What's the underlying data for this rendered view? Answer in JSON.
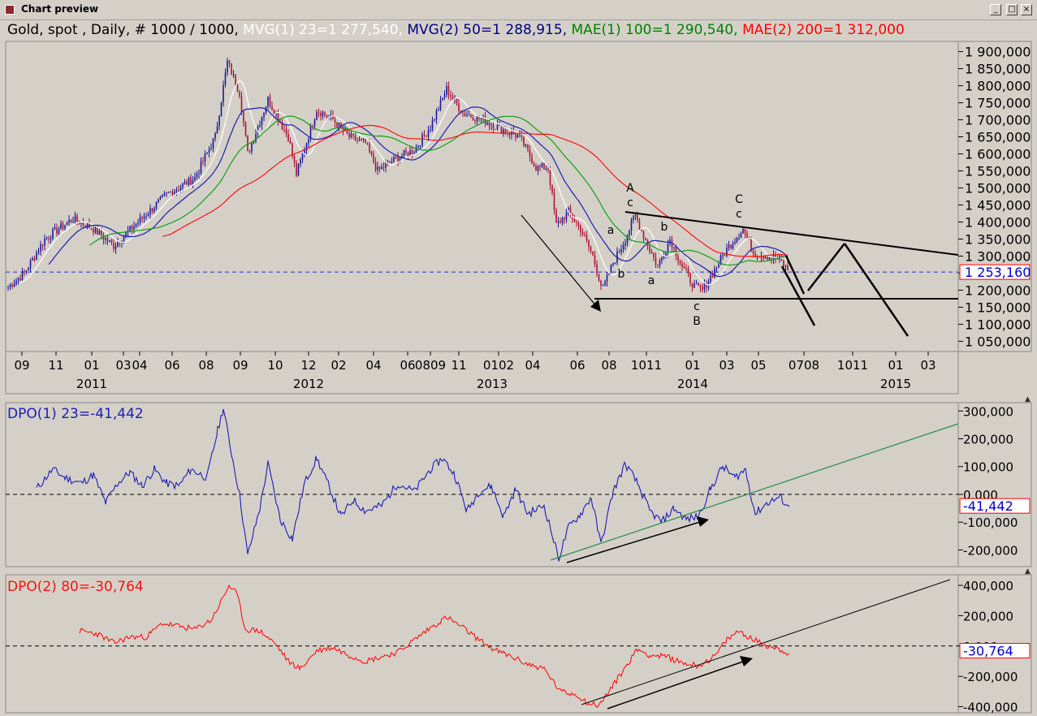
{
  "window": {
    "title": "Chart preview"
  },
  "legend": [
    {
      "text": "Gold, spot , Daily, # 1000 / 1000, ",
      "color": "#000000"
    },
    {
      "text": "MVG(1) 23=1 277,540, ",
      "color": "#ffffff"
    },
    {
      "text": "MVG(2) 50=1 288,915, ",
      "color": "#000080"
    },
    {
      "text": "MAE(1) 100=1 290,540, ",
      "color": "#008000"
    },
    {
      "text": "MAE(2) 200=1 312,000",
      "color": "#ff0000"
    }
  ],
  "colors": {
    "plot_bg": "#d4d0c8",
    "mvg1": "#ffffff",
    "mvg2": "#1c1cb4",
    "mae1": "#12a012",
    "mae2": "#ff1010",
    "dpo1": "#1c1cb4",
    "dpo2": "#ff1010"
  },
  "chart_data": [
    {
      "type": "candlestick",
      "x_month_labels": [
        "09",
        "11",
        "01",
        "03",
        "04",
        "06",
        "08",
        "09",
        "10",
        "12",
        "02",
        "04",
        "06",
        "0809",
        "11",
        "0102",
        "04",
        "06",
        "08",
        "1011",
        "01",
        "03",
        "05",
        "0708",
        "1011",
        "01",
        "03"
      ],
      "x_year_labels": [
        "2011",
        "2012",
        "2013",
        "2014",
        "2015"
      ],
      "y_ticks": [
        "1 900,000",
        "1 850,000",
        "1 800,000",
        "1 750,000",
        "1 700,000",
        "1 650,000",
        "1 600,000",
        "1 550,000",
        "1 500,000",
        "1 450,000",
        "1 400,000",
        "1 350,000",
        "1 300,000",
        "1 250,000",
        "1 200,000",
        "1 150,000",
        "1 100,000",
        "1 050,000"
      ],
      "ylim": [
        1020000,
        1930000
      ],
      "current_value": "1 253,160",
      "current_value_num": 1253160,
      "series": [
        {
          "name": "MVG(1) 23",
          "last": 1277540
        },
        {
          "name": "MVG(2) 50",
          "last": 1288915
        },
        {
          "name": "MAE(1) 100",
          "last": 1290540
        },
        {
          "name": "MAE(2) 200",
          "last": 1312000
        }
      ],
      "wave_labels": [
        "A",
        "c",
        "a",
        "b",
        "b",
        "a",
        "c",
        "B",
        "C",
        "c"
      ],
      "price_path": [
        [
          0,
          1210
        ],
        [
          20,
          1250
        ],
        [
          45,
          1350
        ],
        [
          80,
          1410
        ],
        [
          105,
          1380
        ],
        [
          130,
          1330
        ],
        [
          160,
          1400
        ],
        [
          195,
          1480
        ],
        [
          230,
          1530
        ],
        [
          255,
          1650
        ],
        [
          270,
          1870
        ],
        [
          285,
          1780
        ],
        [
          295,
          1600
        ],
        [
          320,
          1760
        ],
        [
          345,
          1650
        ],
        [
          355,
          1540
        ],
        [
          380,
          1730
        ],
        [
          400,
          1700
        ],
        [
          420,
          1650
        ],
        [
          440,
          1630
        ],
        [
          455,
          1550
        ],
        [
          480,
          1590
        ],
        [
          500,
          1610
        ],
        [
          520,
          1680
        ],
        [
          540,
          1790
        ],
        [
          560,
          1720
        ],
        [
          585,
          1700
        ],
        [
          610,
          1670
        ],
        [
          630,
          1650
        ],
        [
          650,
          1560
        ],
        [
          665,
          1560
        ],
        [
          675,
          1390
        ],
        [
          690,
          1430
        ],
        [
          705,
          1380
        ],
        [
          720,
          1300
        ],
        [
          732,
          1200
        ],
        [
          745,
          1280
        ],
        [
          760,
          1350
        ],
        [
          772,
          1420
        ],
        [
          790,
          1320
        ],
        [
          800,
          1270
        ],
        [
          815,
          1350
        ],
        [
          830,
          1270
        ],
        [
          845,
          1210
        ],
        [
          855,
          1200
        ],
        [
          870,
          1260
        ],
        [
          885,
          1320
        ],
        [
          905,
          1380
        ],
        [
          918,
          1310
        ],
        [
          935,
          1300
        ],
        [
          950,
          1290
        ],
        [
          962,
          1253
        ]
      ]
    },
    {
      "type": "line",
      "series": [
        {
          "name": "DPO(1) 23",
          "last": -41442
        }
      ],
      "legend_text": "DPO(1) 23=-41,442",
      "y_ticks": [
        "300,000",
        "200,000",
        "100,000",
        "0,000",
        "-100,000",
        "-200,000"
      ],
      "ylim": [
        -260000,
        330000
      ],
      "current_value": "-41,442",
      "current_value_num": -41442,
      "path": [
        [
          35,
          20
        ],
        [
          55,
          90
        ],
        [
          70,
          60
        ],
        [
          90,
          40
        ],
        [
          105,
          70
        ],
        [
          120,
          -30
        ],
        [
          135,
          40
        ],
        [
          150,
          80
        ],
        [
          165,
          30
        ],
        [
          180,
          90
        ],
        [
          195,
          40
        ],
        [
          210,
          30
        ],
        [
          225,
          90
        ],
        [
          245,
          60
        ],
        [
          258,
          230
        ],
        [
          265,
          310
        ],
        [
          275,
          150
        ],
        [
          285,
          0
        ],
        [
          295,
          -220
        ],
        [
          310,
          -50
        ],
        [
          320,
          110
        ],
        [
          335,
          -90
        ],
        [
          350,
          -160
        ],
        [
          365,
          40
        ],
        [
          380,
          130
        ],
        [
          395,
          30
        ],
        [
          410,
          -80
        ],
        [
          425,
          -20
        ],
        [
          440,
          -60
        ],
        [
          460,
          -40
        ],
        [
          480,
          40
        ],
        [
          500,
          10
        ],
        [
          520,
          90
        ],
        [
          535,
          130
        ],
        [
          550,
          70
        ],
        [
          565,
          -60
        ],
        [
          580,
          10
        ],
        [
          595,
          30
        ],
        [
          610,
          -80
        ],
        [
          625,
          20
        ],
        [
          640,
          -70
        ],
        [
          660,
          -40
        ],
        [
          678,
          -230
        ],
        [
          690,
          -120
        ],
        [
          705,
          -70
        ],
        [
          718,
          -10
        ],
        [
          730,
          -180
        ],
        [
          745,
          10
        ],
        [
          760,
          110
        ],
        [
          775,
          40
        ],
        [
          790,
          -60
        ],
        [
          805,
          -100
        ],
        [
          820,
          -50
        ],
        [
          835,
          -90
        ],
        [
          850,
          -80
        ],
        [
          865,
          20
        ],
        [
          880,
          100
        ],
        [
          895,
          60
        ],
        [
          908,
          90
        ],
        [
          920,
          -70
        ],
        [
          935,
          -30
        ],
        [
          950,
          -10
        ],
        [
          962,
          -45
        ]
      ]
    },
    {
      "type": "line",
      "series": [
        {
          "name": "DPO(2) 80",
          "last": -30764
        }
      ],
      "legend_text": "DPO(2) 80=-30,764",
      "y_ticks": [
        "400,000",
        "200,000",
        "0,000",
        "-200,000",
        "-400,000"
      ],
      "ylim": [
        -440000,
        470000
      ],
      "current_value": "-30,764",
      "current_value_num": -30764,
      "path": [
        [
          88,
          100
        ],
        [
          110,
          80
        ],
        [
          130,
          20
        ],
        [
          150,
          60
        ],
        [
          170,
          60
        ],
        [
          190,
          150
        ],
        [
          210,
          130
        ],
        [
          230,
          110
        ],
        [
          250,
          170
        ],
        [
          262,
          290
        ],
        [
          272,
          400
        ],
        [
          282,
          340
        ],
        [
          292,
          110
        ],
        [
          310,
          100
        ],
        [
          330,
          10
        ],
        [
          345,
          -100
        ],
        [
          360,
          -150
        ],
        [
          380,
          -30
        ],
        [
          400,
          -10
        ],
        [
          420,
          -60
        ],
        [
          440,
          -100
        ],
        [
          460,
          -70
        ],
        [
          480,
          -40
        ],
        [
          500,
          40
        ],
        [
          520,
          120
        ],
        [
          540,
          190
        ],
        [
          560,
          120
        ],
        [
          580,
          40
        ],
        [
          600,
          -30
        ],
        [
          620,
          -70
        ],
        [
          640,
          -120
        ],
        [
          660,
          -150
        ],
        [
          680,
          -300
        ],
        [
          700,
          -320
        ],
        [
          715,
          -380
        ],
        [
          728,
          -390
        ],
        [
          745,
          -260
        ],
        [
          760,
          -140
        ],
        [
          775,
          -20
        ],
        [
          790,
          -60
        ],
        [
          810,
          -70
        ],
        [
          830,
          -110
        ],
        [
          850,
          -130
        ],
        [
          870,
          -70
        ],
        [
          885,
          40
        ],
        [
          900,
          100
        ],
        [
          915,
          50
        ],
        [
          930,
          10
        ],
        [
          945,
          -10
        ],
        [
          962,
          -50
        ]
      ]
    }
  ]
}
